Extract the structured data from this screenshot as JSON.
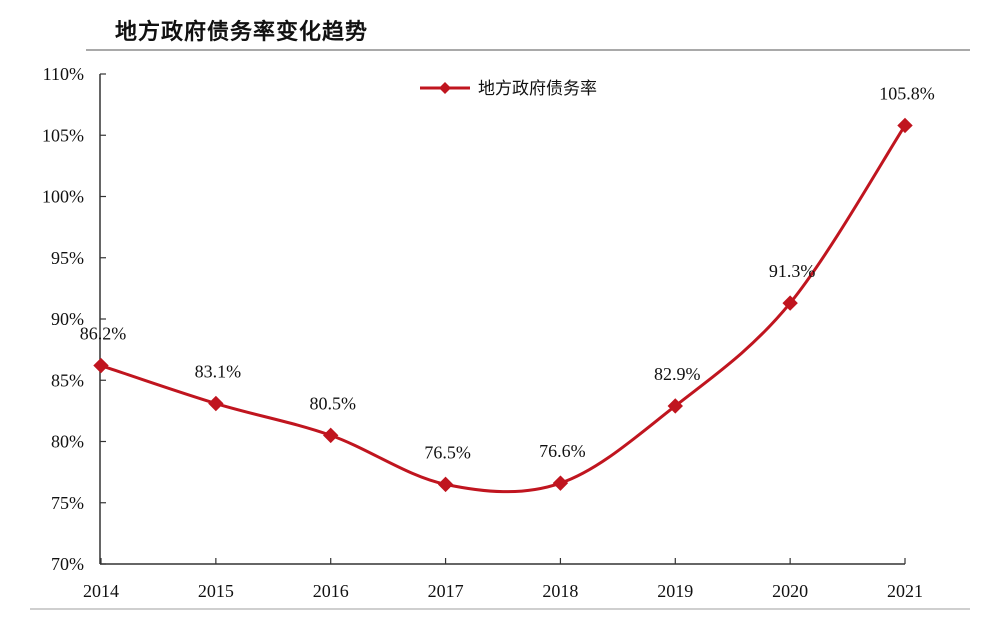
{
  "header": {
    "title": "地方政府债务率变化趋势"
  },
  "colors": {
    "series": "#c0151f",
    "axis": "#333333",
    "text": "#111111"
  },
  "chart_data": {
    "type": "line",
    "title": "地方政府债务率变化趋势",
    "xlabel": "",
    "ylabel": "",
    "x": [
      "2014",
      "2015",
      "2016",
      "2017",
      "2018",
      "2019",
      "2020",
      "2021"
    ],
    "series": [
      {
        "name": "地方政府债务率",
        "values": [
          86.2,
          83.1,
          80.5,
          76.5,
          76.6,
          82.9,
          91.3,
          105.8
        ],
        "labels": [
          "86.2%",
          "83.1%",
          "80.5%",
          "76.5%",
          "76.6%",
          "82.9%",
          "91.3%",
          "105.8%"
        ],
        "marker": "diamond",
        "smooth": true
      }
    ],
    "ylim": [
      70,
      110
    ],
    "yticks": [
      70,
      75,
      80,
      85,
      90,
      95,
      100,
      105,
      110
    ],
    "ytick_labels": [
      "70%",
      "75%",
      "80%",
      "85%",
      "90%",
      "95%",
      "100%",
      "105%",
      "110%"
    ],
    "grid": false,
    "legend": "top-center"
  }
}
